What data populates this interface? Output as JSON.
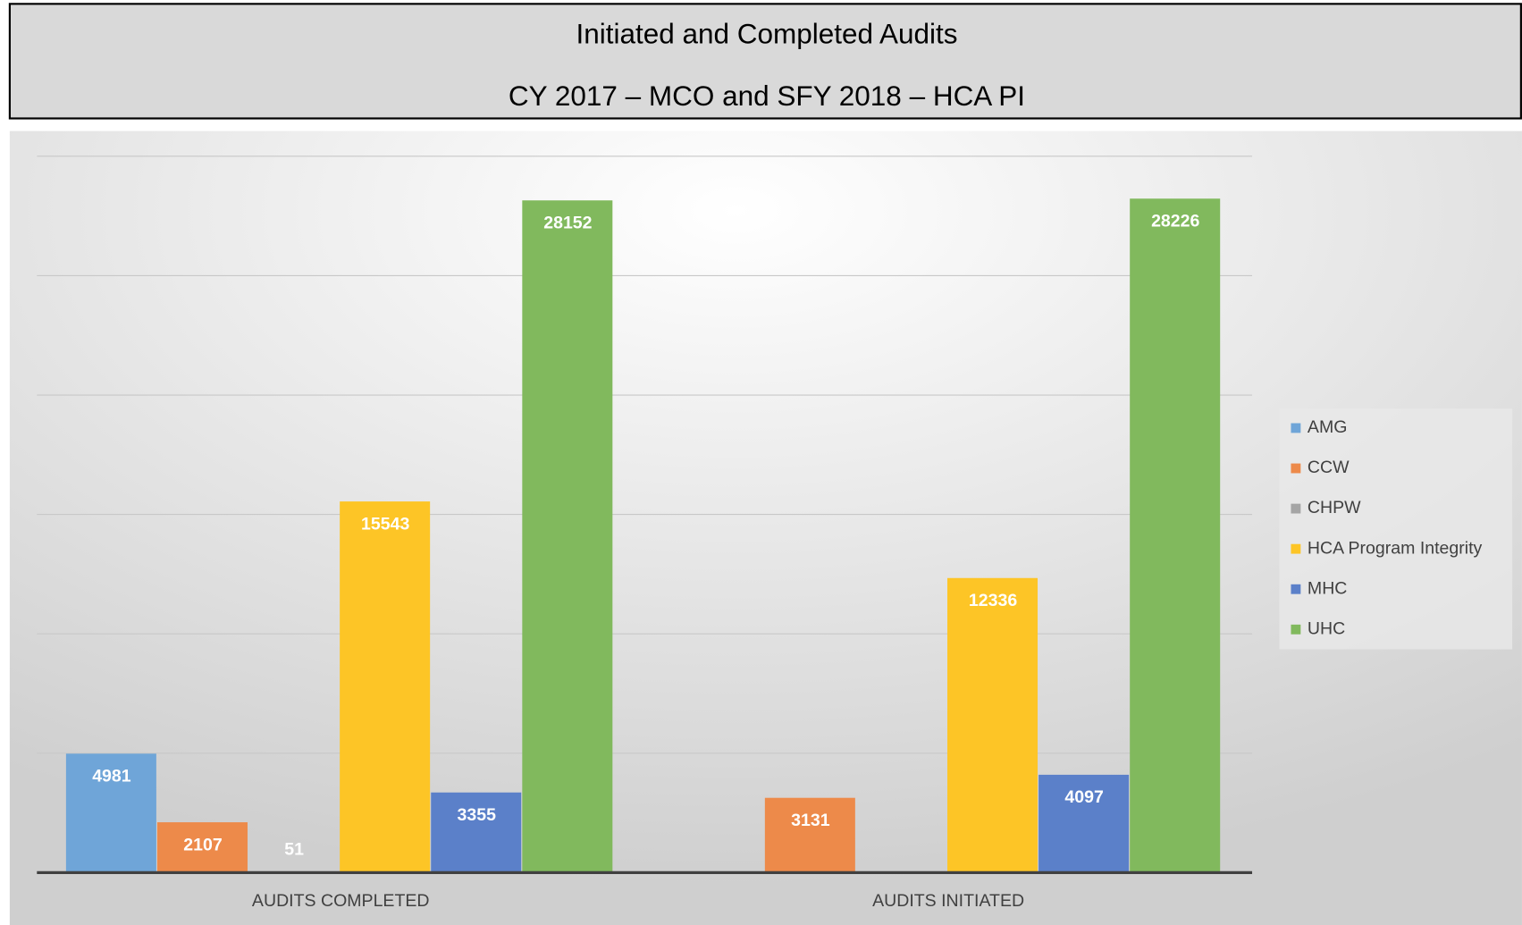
{
  "chart_data": {
    "type": "bar",
    "title": "Initiated and Completed Audits",
    "subtitle": "CY 2017 – MCO and SFY 2018 – HCA PI",
    "categories": [
      "AUDITS COMPLETED",
      "AUDITS INITIATED"
    ],
    "series": [
      {
        "name": "AMG",
        "color": "#6fa5d8",
        "values": [
          4981,
          null
        ]
      },
      {
        "name": "CCW",
        "color": "#ed8a4a",
        "values": [
          2107,
          3131
        ]
      },
      {
        "name": "CHPW",
        "color": "#a5a5a5",
        "values": [
          51,
          null
        ]
      },
      {
        "name": "HCA Program Integrity",
        "color": "#fdc526",
        "values": [
          15543,
          12336
        ]
      },
      {
        "name": "MHC",
        "color": "#5b80c9",
        "values": [
          3355,
          4097
        ]
      },
      {
        "name": "UHC",
        "color": "#81b95d",
        "values": [
          28152,
          28226
        ]
      }
    ],
    "ylim": [
      0,
      30000
    ],
    "yticks": [
      0,
      5000,
      10000,
      15000,
      20000,
      25000,
      30000
    ],
    "grid": true,
    "legend": "right"
  }
}
